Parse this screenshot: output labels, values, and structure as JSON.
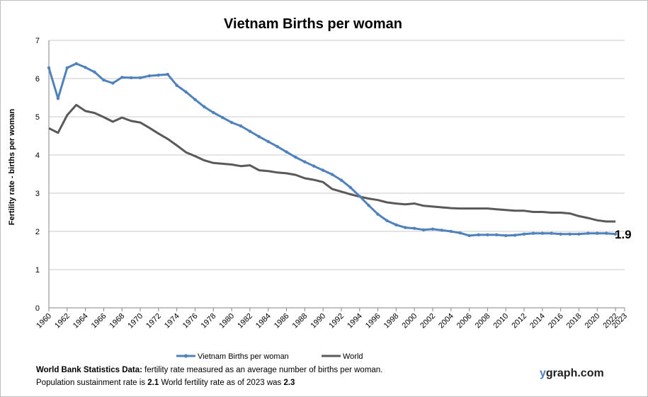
{
  "chart_data": {
    "type": "line",
    "title": "Vietnam Births per woman",
    "xlabel": "",
    "ylabel": "Fertility rate  - births per woman",
    "ylim": [
      0,
      7
    ],
    "yticks": [
      0,
      1,
      2,
      3,
      4,
      5,
      6,
      7
    ],
    "xlim": [
      1960,
      2023
    ],
    "xticks": [
      "1960",
      "1962",
      "1964",
      "1966",
      "1968",
      "1970",
      "1972",
      "1974",
      "1976",
      "1978",
      "1980",
      "1982",
      "1984",
      "1986",
      "1988",
      "1990",
      "1992",
      "1994",
      "1996",
      "1998",
      "2000",
      "2002",
      "2004",
      "2006",
      "2008",
      "2010",
      "2012",
      "2014",
      "2016",
      "2018",
      "2020",
      "2022",
      "2023"
    ],
    "grid": true,
    "legend_position": "bottom",
    "end_label": "1.9",
    "x": [
      1960,
      1961,
      1962,
      1963,
      1964,
      1965,
      1966,
      1967,
      1968,
      1969,
      1970,
      1971,
      1972,
      1973,
      1974,
      1975,
      1976,
      1977,
      1978,
      1979,
      1980,
      1981,
      1982,
      1983,
      1984,
      1985,
      1986,
      1987,
      1988,
      1989,
      1990,
      1991,
      1992,
      1993,
      1994,
      1995,
      1996,
      1997,
      1998,
      1999,
      2000,
      2001,
      2002,
      2003,
      2004,
      2005,
      2006,
      2007,
      2008,
      2009,
      2010,
      2011,
      2012,
      2013,
      2014,
      2015,
      2016,
      2017,
      2018,
      2019,
      2020,
      2021,
      2022
    ],
    "series": [
      {
        "name": "Vietnam Births per woman",
        "color": "#4f81bd",
        "markers": true,
        "values": [
          6.28,
          5.48,
          6.28,
          6.39,
          6.29,
          6.17,
          5.96,
          5.88,
          6.03,
          6.02,
          6.02,
          6.07,
          6.09,
          6.11,
          5.82,
          5.65,
          5.45,
          5.26,
          5.11,
          4.98,
          4.85,
          4.76,
          4.62,
          4.48,
          4.35,
          4.22,
          4.08,
          3.94,
          3.82,
          3.71,
          3.6,
          3.49,
          3.34,
          3.15,
          2.92,
          2.68,
          2.45,
          2.28,
          2.17,
          2.1,
          2.08,
          2.04,
          2.06,
          2.03,
          2.0,
          1.96,
          1.89,
          1.91,
          1.91,
          1.91,
          1.89,
          1.9,
          1.93,
          1.95,
          1.95,
          1.95,
          1.93,
          1.93,
          1.93,
          1.95,
          1.95,
          1.95,
          1.93
        ]
      },
      {
        "name": "World",
        "color": "#595959",
        "markers": false,
        "values": [
          4.7,
          4.58,
          5.04,
          5.31,
          5.15,
          5.1,
          4.99,
          4.87,
          4.98,
          4.89,
          4.85,
          4.71,
          4.56,
          4.42,
          4.25,
          4.07,
          3.97,
          3.86,
          3.79,
          3.77,
          3.75,
          3.71,
          3.73,
          3.6,
          3.58,
          3.54,
          3.52,
          3.48,
          3.39,
          3.35,
          3.29,
          3.11,
          3.04,
          2.97,
          2.91,
          2.86,
          2.82,
          2.76,
          2.73,
          2.71,
          2.73,
          2.67,
          2.65,
          2.63,
          2.61,
          2.6,
          2.6,
          2.6,
          2.6,
          2.58,
          2.56,
          2.54,
          2.54,
          2.51,
          2.51,
          2.49,
          2.49,
          2.47,
          2.4,
          2.35,
          2.29,
          2.26,
          2.26
        ]
      }
    ]
  },
  "footer": {
    "line1_bold": "World Bank Statistics Data:",
    "line1_text": " fertility rate measured as an average number  of births per woman.",
    "line2_a": "Population sustainment rate is ",
    "line2_b": "2.1",
    "line2_c": "    World fertility rate as of 2023 was ",
    "line2_d": "2.3"
  },
  "brand": {
    "y": "y",
    "rest": "graph.com"
  }
}
